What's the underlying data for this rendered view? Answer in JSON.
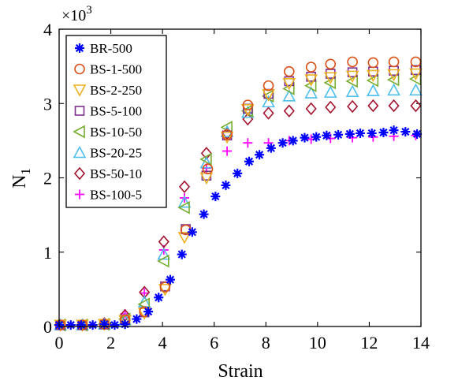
{
  "chart_data": {
    "type": "scatter",
    "xlabel": "Strain",
    "ylabel": "N",
    "ylabel_subscript": "1",
    "y_multiplier_label": "×10",
    "y_multiplier_exponent": "3",
    "xlim": [
      0,
      14
    ],
    "ylim": [
      0,
      4
    ],
    "xticks": [
      "0",
      "2",
      "4",
      "6",
      "8",
      "10",
      "12",
      "14"
    ],
    "yticks": [
      "0",
      "1",
      "2",
      "3",
      "4"
    ],
    "grid": false,
    "legend_position": "top-left",
    "series": [
      {
        "name": "BR-500",
        "marker": "asterisk",
        "color": "#0000ff",
        "points": [
          [
            0,
            0.02
          ],
          [
            0.45,
            0.02
          ],
          [
            0.85,
            0.02
          ],
          [
            1.3,
            0.02
          ],
          [
            1.75,
            0.03
          ],
          [
            2.15,
            0.02
          ],
          [
            2.55,
            0.03
          ],
          [
            3.0,
            0.1
          ],
          [
            3.45,
            0.2
          ],
          [
            3.85,
            0.39
          ],
          [
            4.3,
            0.63
          ],
          [
            4.75,
            0.97
          ],
          [
            5.15,
            1.27
          ],
          [
            5.6,
            1.51
          ],
          [
            6.05,
            1.75
          ],
          [
            6.45,
            1.9
          ],
          [
            6.9,
            2.06
          ],
          [
            7.35,
            2.22
          ],
          [
            7.75,
            2.31
          ],
          [
            8.2,
            2.4
          ],
          [
            8.65,
            2.47
          ],
          [
            9.05,
            2.5
          ],
          [
            9.5,
            2.54
          ],
          [
            9.95,
            2.55
          ],
          [
            10.35,
            2.57
          ],
          [
            10.8,
            2.58
          ],
          [
            11.25,
            2.59
          ],
          [
            11.65,
            2.6
          ],
          [
            12.1,
            2.6
          ],
          [
            12.55,
            2.61
          ],
          [
            12.95,
            2.64
          ],
          [
            13.4,
            2.62
          ],
          [
            13.85,
            2.59
          ]
        ]
      },
      {
        "name": "BS-1-500",
        "marker": "circle",
        "color": "#d95319",
        "points": [
          [
            0.05,
            0.02
          ],
          [
            0.9,
            0.02
          ],
          [
            1.75,
            0.03
          ],
          [
            2.55,
            0.09
          ],
          [
            3.3,
            0.2
          ],
          [
            4.1,
            0.53
          ],
          [
            4.9,
            1.3
          ],
          [
            5.75,
            2.12
          ],
          [
            6.5,
            2.58
          ],
          [
            7.3,
            2.98
          ],
          [
            8.1,
            3.24
          ],
          [
            8.9,
            3.43
          ],
          [
            9.75,
            3.49
          ],
          [
            10.5,
            3.53
          ],
          [
            11.35,
            3.56
          ],
          [
            12.15,
            3.55
          ],
          [
            12.95,
            3.56
          ],
          [
            13.8,
            3.56
          ]
        ]
      },
      {
        "name": "BS-2-250",
        "marker": "triangle-down",
        "color": "#edb120",
        "points": [
          [
            0.05,
            0.02
          ],
          [
            0.9,
            0.02
          ],
          [
            1.75,
            0.03
          ],
          [
            2.55,
            0.08
          ],
          [
            3.3,
            0.18
          ],
          [
            4.1,
            0.5
          ],
          [
            4.85,
            1.2
          ],
          [
            5.7,
            2.0
          ],
          [
            6.5,
            2.55
          ],
          [
            7.3,
            2.92
          ],
          [
            8.1,
            3.12
          ],
          [
            8.9,
            3.27
          ],
          [
            9.75,
            3.32
          ],
          [
            10.5,
            3.35
          ],
          [
            11.35,
            3.37
          ],
          [
            12.15,
            3.38
          ],
          [
            12.95,
            3.39
          ],
          [
            13.8,
            3.4
          ]
        ]
      },
      {
        "name": "BS-5-100",
        "marker": "square",
        "color": "#7e2f8e",
        "points": [
          [
            0.05,
            0.02
          ],
          [
            0.9,
            0.02
          ],
          [
            1.75,
            0.03
          ],
          [
            2.55,
            0.09
          ],
          [
            3.3,
            0.19
          ],
          [
            4.1,
            0.54
          ],
          [
            4.9,
            1.31
          ],
          [
            5.7,
            2.03
          ],
          [
            6.5,
            2.57
          ],
          [
            7.3,
            2.93
          ],
          [
            8.1,
            3.13
          ],
          [
            8.9,
            3.3
          ],
          [
            9.75,
            3.36
          ],
          [
            10.5,
            3.4
          ],
          [
            11.35,
            3.42
          ],
          [
            12.15,
            3.43
          ],
          [
            12.95,
            3.44
          ],
          [
            13.8,
            3.45
          ]
        ]
      },
      {
        "name": "BS-10-50",
        "marker": "triangle-left",
        "color": "#77ac30",
        "points": [
          [
            0.05,
            0.02
          ],
          [
            0.9,
            0.02
          ],
          [
            1.75,
            0.03
          ],
          [
            2.55,
            0.1
          ],
          [
            3.3,
            0.3
          ],
          [
            4.05,
            0.88
          ],
          [
            4.85,
            1.6
          ],
          [
            5.7,
            2.25
          ],
          [
            6.5,
            2.68
          ],
          [
            7.3,
            2.9
          ],
          [
            8.1,
            3.1
          ],
          [
            8.9,
            3.2
          ],
          [
            9.75,
            3.24
          ],
          [
            10.5,
            3.28
          ],
          [
            11.35,
            3.3
          ],
          [
            12.15,
            3.31
          ],
          [
            12.95,
            3.32
          ],
          [
            13.8,
            3.33
          ]
        ]
      },
      {
        "name": "BS-20-25",
        "marker": "triangle-up",
        "color": "#4dbeee",
        "points": [
          [
            0.05,
            0.02
          ],
          [
            0.9,
            0.02
          ],
          [
            1.75,
            0.03
          ],
          [
            2.55,
            0.09
          ],
          [
            3.3,
            0.33
          ],
          [
            4.05,
            0.97
          ],
          [
            4.85,
            1.67
          ],
          [
            5.7,
            2.2
          ],
          [
            6.5,
            2.62
          ],
          [
            7.3,
            2.88
          ],
          [
            8.1,
            3.02
          ],
          [
            8.9,
            3.1
          ],
          [
            9.75,
            3.14
          ],
          [
            10.5,
            3.15
          ],
          [
            11.35,
            3.16
          ],
          [
            12.15,
            3.17
          ],
          [
            12.95,
            3.18
          ],
          [
            13.8,
            3.18
          ]
        ]
      },
      {
        "name": "BS-50-10",
        "marker": "diamond",
        "color": "#a2142f",
        "points": [
          [
            0.05,
            0.02
          ],
          [
            0.9,
            0.02
          ],
          [
            1.75,
            0.04
          ],
          [
            2.55,
            0.15
          ],
          [
            3.3,
            0.46
          ],
          [
            4.05,
            1.14
          ],
          [
            4.85,
            1.88
          ],
          [
            5.7,
            2.33
          ],
          [
            6.5,
            2.6
          ],
          [
            7.3,
            2.79
          ],
          [
            8.1,
            2.87
          ],
          [
            8.9,
            2.9
          ],
          [
            9.75,
            2.93
          ],
          [
            10.5,
            2.95
          ],
          [
            11.35,
            2.96
          ],
          [
            12.15,
            2.97
          ],
          [
            12.95,
            2.97
          ],
          [
            13.8,
            2.97
          ]
        ]
      },
      {
        "name": "BS-100-5",
        "marker": "plus",
        "color": "#ff00ff",
        "points": [
          [
            0.05,
            0.02
          ],
          [
            0.9,
            0.02
          ],
          [
            1.75,
            0.05
          ],
          [
            2.55,
            0.17
          ],
          [
            3.3,
            0.45
          ],
          [
            4.05,
            1.03
          ],
          [
            4.85,
            1.73
          ],
          [
            5.7,
            2.13
          ],
          [
            6.5,
            2.36
          ],
          [
            7.3,
            2.47
          ],
          [
            8.1,
            2.47
          ],
          [
            8.9,
            2.5
          ],
          [
            9.75,
            2.52
          ],
          [
            10.5,
            2.53
          ],
          [
            11.35,
            2.54
          ],
          [
            12.15,
            2.55
          ],
          [
            12.95,
            2.56
          ],
          [
            13.8,
            2.57
          ]
        ]
      }
    ]
  }
}
